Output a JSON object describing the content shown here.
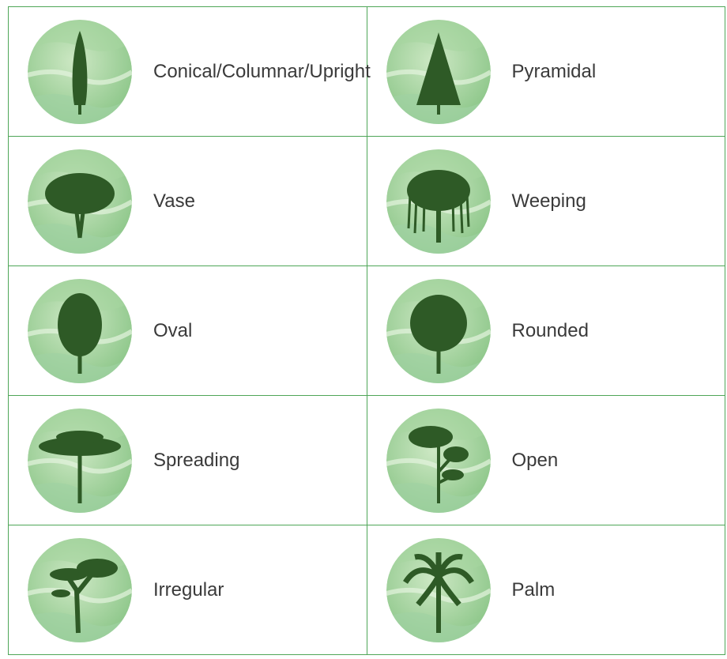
{
  "table": {
    "rows": [
      [
        {
          "label": "Conical/Columnar/Upright"
        },
        {
          "label": "Pyramidal"
        }
      ],
      [
        {
          "label": "Vase"
        },
        {
          "label": "Weeping"
        }
      ],
      [
        {
          "label": "Oval"
        },
        {
          "label": "Rounded"
        }
      ],
      [
        {
          "label": "Spreading"
        },
        {
          "label": "Open"
        }
      ],
      [
        {
          "label": "Irregular"
        },
        {
          "label": "Palm"
        }
      ]
    ]
  }
}
